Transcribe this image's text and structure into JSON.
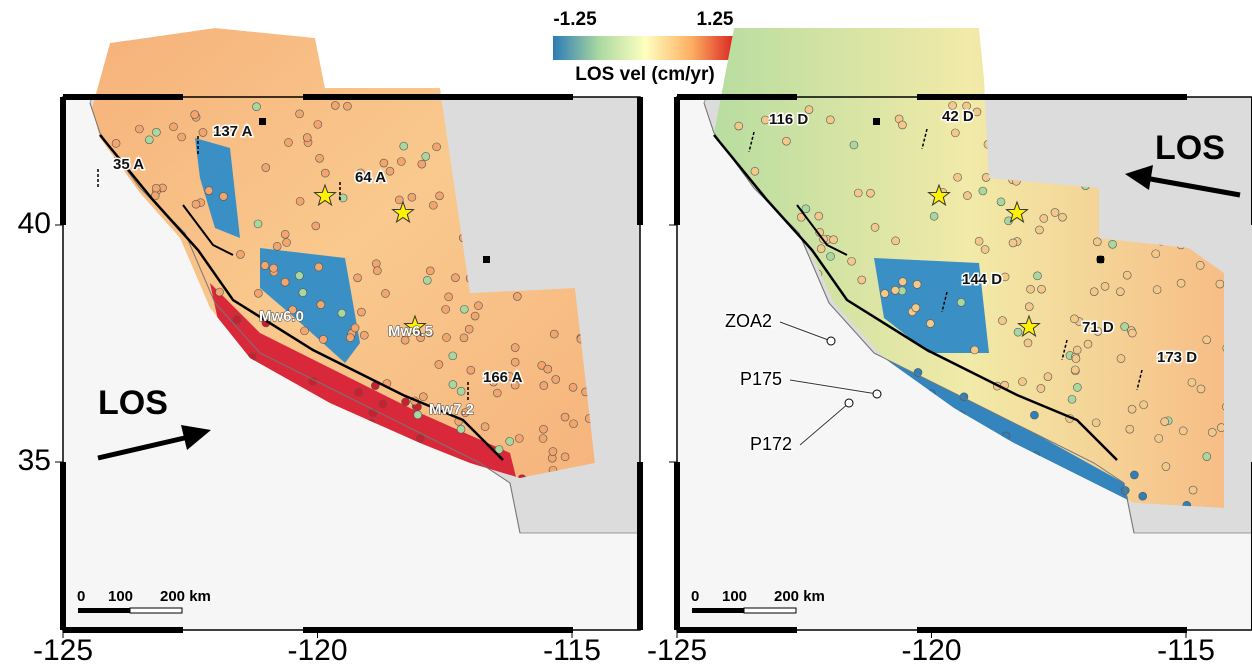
{
  "colorbar": {
    "min": -1.25,
    "max": 1.25,
    "label": "LOS vel (cm/yr)"
  },
  "axes": {
    "xticks": [
      -125,
      -120,
      -115
    ],
    "yticks": [
      40,
      35
    ]
  },
  "panels": [
    {
      "tracks": [
        "35 A",
        "137 A",
        "64 A",
        "166 A"
      ],
      "events": [
        "Mw6.0",
        "Mw6.5",
        "Mw7.2"
      ],
      "los": "LOS",
      "scale": [
        "0",
        "100",
        "200 km"
      ]
    },
    {
      "tracks": [
        "116 D",
        "42 D",
        "144 D",
        "71 D",
        "173 D"
      ],
      "stations": [
        "ZOA2",
        "P175",
        "P172"
      ],
      "los": "LOS",
      "scale": [
        "0",
        "100",
        "200 km"
      ]
    }
  ]
}
